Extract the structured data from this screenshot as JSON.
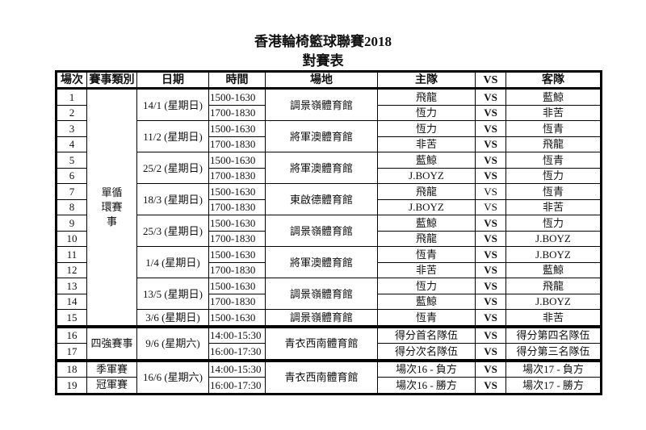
{
  "title": "香港輪椅籃球聯賽2018",
  "subtitle": "對賽表",
  "headers": [
    "場次",
    "賽事類別",
    "日期",
    "時間",
    "場地",
    "主隊",
    "VS",
    "客隊"
  ],
  "matches": [
    {
      "section": 1,
      "no": "1",
      "category": "單循環賽事",
      "date": "14/1 (星期日)",
      "time": "1500-1630",
      "venue": "調景嶺體育館",
      "home": "飛龍",
      "vs": "VS",
      "away": "藍鯨"
    },
    {
      "section": 1,
      "no": "2",
      "category": "單循環賽事",
      "date": "14/1 (星期日)",
      "time": "1700-1830",
      "venue": "調景嶺體育館",
      "home": "恆力",
      "vs": "VS",
      "away": "非苦"
    },
    {
      "section": 1,
      "no": "3",
      "category": "單循環賽事",
      "date": "11/2 (星期日)",
      "time": "1500-1630",
      "venue": "將軍澳體育館",
      "home": "恆力",
      "vs": "VS",
      "away": "恆青"
    },
    {
      "section": 1,
      "no": "4",
      "category": "單循環賽事",
      "date": "11/2 (星期日)",
      "time": "1700-1830",
      "venue": "將軍澳體育館",
      "home": "非苦",
      "vs": "VS",
      "away": "飛龍"
    },
    {
      "section": 1,
      "no": "5",
      "category": "單循環賽事",
      "date": "25/2 (星期日)",
      "time": "1500-1630",
      "venue": "將軍澳體育館",
      "home": "藍鯨",
      "vs": "VS",
      "away": "恆青"
    },
    {
      "section": 1,
      "no": "6",
      "category": "單循環賽事",
      "date": "25/2 (星期日)",
      "time": "1700-1830",
      "venue": "將軍澳體育館",
      "home": "J.BOYZ",
      "vs": "VS",
      "away": "恆力"
    },
    {
      "section": 1,
      "no": "7",
      "category": "單循環賽事",
      "date": "18/3 (星期日)",
      "time": "1500-1630",
      "venue": "東啟德體育館",
      "home": "飛龍",
      "vs": "VS",
      "vs_weight": "normal",
      "away": "恆青"
    },
    {
      "section": 1,
      "no": "8",
      "category": "單循環賽事",
      "date": "18/3 (星期日)",
      "time": "1700-1830",
      "venue": "東啟德體育館",
      "home": "J.BOYZ",
      "vs": "VS",
      "vs_weight": "normal",
      "away": "非苦"
    },
    {
      "section": 1,
      "no": "9",
      "category": "單循環賽事",
      "date": "25/3 (星期日)",
      "time": "1500-1630",
      "venue": "調景嶺體育館",
      "home": "藍鯨",
      "vs": "VS",
      "away": "恆力"
    },
    {
      "section": 1,
      "no": "10",
      "category": "單循環賽事",
      "date": "25/3 (星期日)",
      "time": "1700-1830",
      "venue": "調景嶺體育館",
      "home": "飛龍",
      "vs": "VS",
      "away": "J.BOYZ"
    },
    {
      "section": 1,
      "no": "11",
      "category": "單循環賽事",
      "date": "1/4 (星期日)",
      "time": "1500-1630",
      "venue": "將軍澳體育館",
      "home": "恆青",
      "vs": "VS",
      "away": "J.BOYZ"
    },
    {
      "section": 1,
      "no": "12",
      "category": "單循環賽事",
      "date": "1/4 (星期日)",
      "time": "1700-1830",
      "venue": "將軍澳體育館",
      "home": "非苦",
      "vs": "VS",
      "away": "藍鯨"
    },
    {
      "section": 1,
      "no": "13",
      "category": "單循環賽事",
      "date": "13/5 (星期日)",
      "time": "1500-1630",
      "venue": "調景嶺體育館",
      "home": "恆力",
      "vs": "VS",
      "away": "飛龍"
    },
    {
      "section": 1,
      "no": "14",
      "category": "單循環賽事",
      "date": "13/5 (星期日)",
      "time": "1700-1830",
      "venue": "調景嶺體育館",
      "home": "藍鯨",
      "vs": "VS",
      "away": "J.BOYZ"
    },
    {
      "section": 1,
      "no": "15",
      "category": "單循環賽事",
      "date": "3/6 (星期日)",
      "time": "1500-1630",
      "venue": "調景嶺體育館",
      "home": "恆青",
      "vs": "VS",
      "away": "非苦"
    },
    {
      "section": 2,
      "no": "16",
      "category": "四強賽事",
      "date": "9/6 (星期六)",
      "time": "14:00-15:30",
      "venue": "青衣西南體育館",
      "home": "得分首名隊伍",
      "vs": "VS",
      "away": "得分第四名隊伍"
    },
    {
      "section": 2,
      "no": "17",
      "category": "四強賽事",
      "date": "9/6 (星期六)",
      "time": "16:00-17:30",
      "venue": "青衣西南體育館",
      "home": "得分次名隊伍",
      "vs": "VS",
      "away": "得分第三名隊伍"
    },
    {
      "section": 3,
      "no": "18",
      "category": "季軍賽",
      "date": "16/6 (星期六)",
      "time": "14:00-15:30",
      "venue": "青衣西南體育館",
      "home": "場次16 - 負方",
      "vs": "VS",
      "away": "場次17 - 負方"
    },
    {
      "section": 3,
      "no": "19",
      "category": "冠軍賽",
      "date": "16/6 (星期六)",
      "time": "16:00-17:30",
      "venue": "青衣西南體育館",
      "home": "場次16 - 勝方",
      "vs": "VS",
      "away": "場次17 - 勝方"
    }
  ]
}
